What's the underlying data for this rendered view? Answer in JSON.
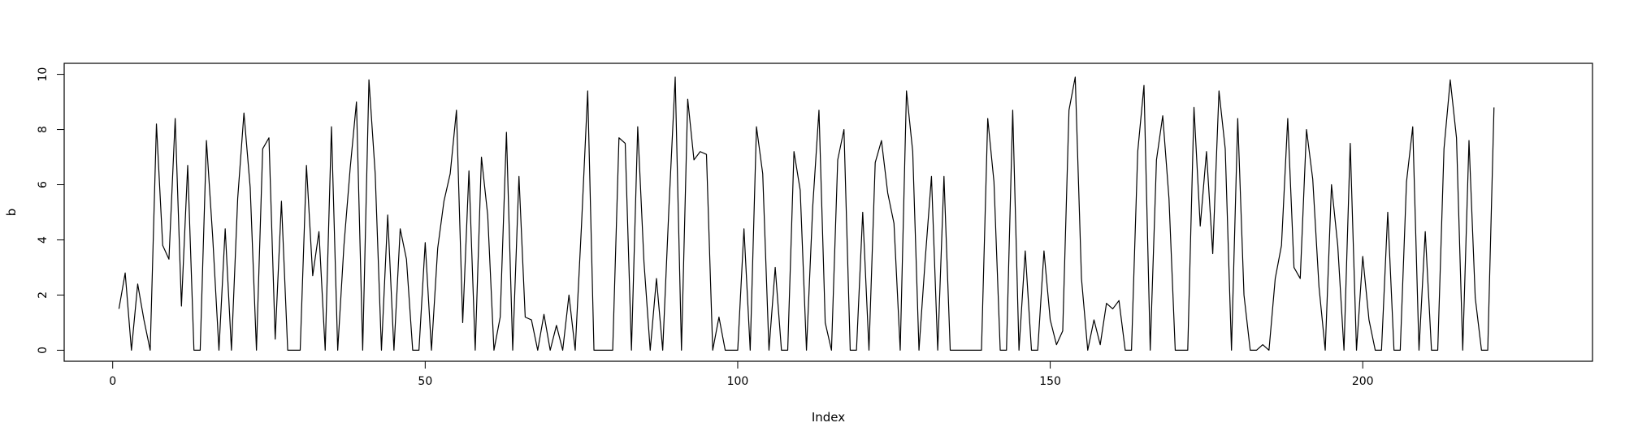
{
  "chart_data": {
    "type": "line",
    "title": "",
    "xlabel": "Index",
    "ylabel": "b",
    "xlim": [
      -7.76,
      236.76
    ],
    "ylim": [
      -0.4,
      10.4
    ],
    "x_ticks": [
      0,
      50,
      100,
      150,
      200
    ],
    "y_ticks": [
      0,
      2,
      4,
      6,
      8,
      10
    ],
    "x_tick_labels": [
      "0",
      "50",
      "100",
      "150",
      "200"
    ],
    "y_tick_labels": [
      "0",
      "2",
      "4",
      "6",
      "8",
      "10"
    ],
    "grid": false,
    "line_color": "#000000",
    "x_start": 1,
    "values": [
      1.5,
      2.8,
      0,
      2.4,
      1.1,
      0,
      8.2,
      3.8,
      3.3,
      8.4,
      1.6,
      6.7,
      0,
      0,
      7.6,
      4.1,
      0,
      4.4,
      0,
      5.5,
      8.6,
      5.9,
      0,
      7.3,
      7.7,
      0.4,
      5.4,
      0,
      0,
      0,
      6.7,
      2.7,
      4.3,
      0,
      8.1,
      0,
      3.8,
      6.6,
      9,
      0,
      9.8,
      6.4,
      0,
      4.9,
      0,
      4.4,
      3.3,
      0,
      0,
      3.9,
      0,
      3.7,
      5.4,
      6.4,
      8.7,
      1,
      6.5,
      0,
      7,
      4.9,
      0,
      1.2,
      7.9,
      0,
      6.3,
      1.2,
      1.1,
      0,
      1.3,
      0,
      0.9,
      0,
      2,
      0,
      4.5,
      9.4,
      0,
      0,
      0,
      0,
      7.7,
      7.5,
      0,
      8.1,
      3.2,
      0,
      2.6,
      0,
      5.2,
      9.9,
      0,
      9.1,
      6.9,
      7.2,
      7.1,
      0,
      1.2,
      0,
      0,
      0,
      4.4,
      0,
      8.1,
      6.4,
      0,
      3,
      0,
      0,
      7.2,
      5.8,
      0,
      5.2,
      8.7,
      1,
      0,
      6.9,
      8,
      0,
      0,
      5,
      0,
      6.8,
      7.6,
      5.7,
      4.6,
      0,
      9.4,
      7.2,
      0,
      3.3,
      6.3,
      0,
      6.3,
      0,
      0,
      0,
      0,
      0,
      0,
      8.4,
      6.1,
      0,
      0,
      8.7,
      0,
      3.6,
      0,
      0,
      3.6,
      1.1,
      0.2,
      0.7,
      8.7,
      9.9,
      2.6,
      0,
      1.1,
      0.2,
      1.7,
      1.5,
      1.8,
      0,
      0,
      7.2,
      9.6,
      0,
      6.9,
      8.5,
      5.5,
      0,
      0,
      0,
      8.8,
      4.5,
      7.2,
      3.5,
      9.4,
      7.3,
      0,
      8.4,
      2,
      0,
      0,
      0.2,
      0,
      2.6,
      3.8,
      8.4,
      3,
      2.6,
      8,
      6.2,
      2.3,
      0,
      6,
      3.8,
      0,
      7.5,
      0,
      3.4,
      1.1,
      0,
      0,
      5,
      0,
      0,
      6.1,
      8.1,
      0,
      4.3,
      0,
      0,
      7.3,
      9.8,
      7.7,
      0,
      7.6,
      1.9,
      0,
      0,
      8.8
    ]
  }
}
